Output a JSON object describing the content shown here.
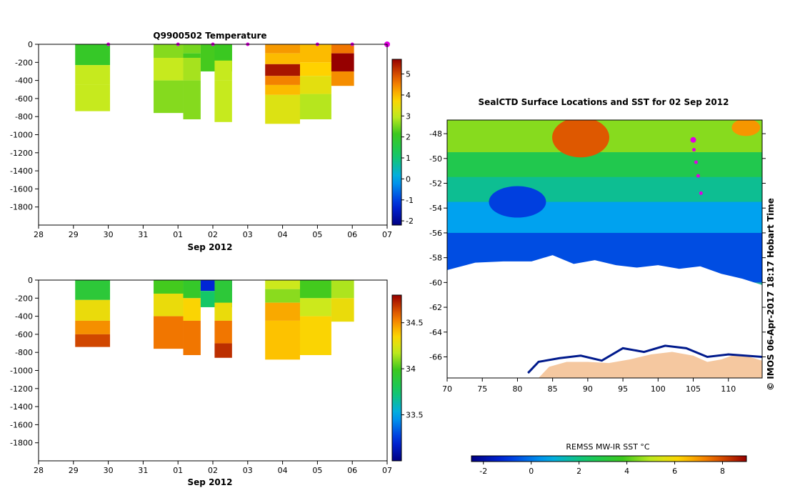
{
  "title_temp": "Q9900502  Temperature",
  "map_title": "SealCTD Surface Locations and SST for 02 Sep 2012",
  "date_label": "Sep 2012",
  "map_colorbar_label": "REMSS MW-IR SST °C",
  "side_credit": "© IMOS 06-Apr-2017 18:17 Hobart Time",
  "colors": {
    "profile_marker": "#e000e0",
    "land": "#f5c8a0",
    "ice_edge": "#001a8c"
  },
  "chart_data": [
    {
      "type": "heatmap",
      "title": "Q9900502  Temperature",
      "xlabel": "Sep 2012",
      "x_ticks": [
        "28",
        "29",
        "30",
        "31",
        "01",
        "02",
        "03",
        "04",
        "05",
        "06",
        "07"
      ],
      "y_ticks": [
        "0",
        "-200",
        "-400",
        "-600",
        "-800",
        "-1000",
        "-1200",
        "-1400",
        "-1600",
        "-1800"
      ],
      "ylim": [
        -2000,
        0
      ],
      "colorbar": {
        "ticks": [
          "5",
          "4",
          "3",
          "2",
          "1",
          "0",
          "-1",
          "-2"
        ],
        "range": [
          -2.2,
          5.7
        ]
      },
      "profiles": [
        {
          "t0": 1.05,
          "t1": 2.05,
          "bottom": -740,
          "layers": [
            [
              0,
              2.0
            ],
            [
              -230,
              3.0
            ],
            [
              -450,
              3.0
            ]
          ]
        },
        {
          "t0": 3.3,
          "t1": 4.15,
          "bottom": -760,
          "layers": [
            [
              0,
              2.6
            ],
            [
              -150,
              3.0
            ],
            [
              -400,
              2.6
            ]
          ]
        },
        {
          "t0": 4.15,
          "t1": 4.65,
          "bottom": -830,
          "layers": [
            [
              0,
              2.5
            ],
            [
              -100,
              2.2
            ],
            [
              -150,
              2.8
            ],
            [
              -400,
              2.6
            ]
          ]
        },
        {
          "t0": 4.65,
          "t1": 5.55,
          "bottom": -300,
          "layers": [
            [
              0,
              2.2
            ]
          ]
        },
        {
          "t0": 5.05,
          "t1": 5.55,
          "bottom": -860,
          "layers": [
            [
              0,
              2.1
            ],
            [
              -180,
              3.0
            ],
            [
              -400,
              3.0
            ]
          ]
        },
        {
          "t0": 6.5,
          "t1": 7.5,
          "bottom": -880,
          "layers": [
            [
              0,
              4.3
            ],
            [
              -100,
              4.0
            ],
            [
              -220,
              5.5
            ],
            [
              -350,
              4.5
            ],
            [
              -450,
              4.0
            ],
            [
              -560,
              3.3
            ]
          ]
        },
        {
          "t0": 7.5,
          "t1": 8.4,
          "bottom": -830,
          "layers": [
            [
              0,
              4.0
            ],
            [
              -200,
              3.8
            ],
            [
              -350,
              3.4
            ],
            [
              -550,
              2.9
            ]
          ]
        },
        {
          "t0": 8.4,
          "t1": 9.05,
          "bottom": -460,
          "layers": [
            [
              0,
              4.6
            ],
            [
              -100,
              5.7
            ],
            [
              -300,
              4.4
            ]
          ]
        }
      ],
      "markers_x": [
        2.0,
        4.0,
        5.0,
        6.0,
        8.0,
        9.0,
        10.0
      ]
    },
    {
      "type": "heatmap",
      "xlabel": "Sep 2012",
      "x_ticks": [
        "28",
        "29",
        "30",
        "31",
        "01",
        "02",
        "03",
        "04",
        "05",
        "06",
        "07"
      ],
      "y_ticks": [
        "0",
        "-200",
        "-400",
        "-600",
        "-800",
        "-1000",
        "-1200",
        "-1400",
        "-1600",
        "-1800"
      ],
      "ylim": [
        -2000,
        0
      ],
      "colorbar": {
        "ticks": [
          "34.5",
          "34",
          "33.5"
        ],
        "range": [
          33.0,
          34.8
        ]
      },
      "profiles": [
        {
          "t0": 1.05,
          "t1": 2.05,
          "bottom": -740,
          "layers": [
            [
              0,
              33.9
            ],
            [
              -220,
              34.3
            ],
            [
              -450,
              34.5
            ],
            [
              -600,
              34.65
            ]
          ]
        },
        {
          "t0": 3.3,
          "t1": 4.15,
          "bottom": -760,
          "layers": [
            [
              0,
              34.0
            ],
            [
              -150,
              34.3
            ],
            [
              -400,
              34.55
            ]
          ]
        },
        {
          "t0": 4.15,
          "t1": 4.65,
          "bottom": -830,
          "layers": [
            [
              0,
              33.95
            ],
            [
              -200,
              34.35
            ],
            [
              -450,
              34.55
            ]
          ]
        },
        {
          "t0": 4.65,
          "t1": 5.55,
          "bottom": -300,
          "layers": [
            [
              0,
              33.2
            ],
            [
              -120,
              33.75
            ]
          ]
        },
        {
          "t0": 5.05,
          "t1": 5.55,
          "bottom": -860,
          "layers": [
            [
              0,
              33.9
            ],
            [
              -250,
              34.3
            ],
            [
              -450,
              34.55
            ],
            [
              -700,
              34.7
            ]
          ]
        },
        {
          "t0": 6.5,
          "t1": 7.5,
          "bottom": -880,
          "layers": [
            [
              0,
              34.2
            ],
            [
              -100,
              34.1
            ],
            [
              -250,
              34.45
            ],
            [
              -450,
              34.4
            ]
          ]
        },
        {
          "t0": 7.5,
          "t1": 8.4,
          "bottom": -830,
          "layers": [
            [
              0,
              34.0
            ],
            [
              -200,
              34.2
            ],
            [
              -400,
              34.35
            ]
          ]
        },
        {
          "t0": 8.4,
          "t1": 9.05,
          "bottom": -460,
          "layers": [
            [
              0,
              34.15
            ],
            [
              -200,
              34.3
            ]
          ]
        }
      ]
    },
    {
      "type": "heatmap",
      "title": "SealCTD Surface Locations and SST for 02 Sep 2012",
      "x_ticks": [
        "70",
        "75",
        "80",
        "85",
        "90",
        "95",
        "100",
        "105",
        "110"
      ],
      "y_ticks": [
        "-48",
        "-50",
        "-52",
        "-54",
        "-56",
        "-58",
        "-60",
        "-62",
        "-64",
        "-66"
      ],
      "xlim": [
        70,
        114.8
      ],
      "ylim": [
        -67.7,
        -46.9
      ],
      "colorbar": {
        "label": "REMSS MW-IR SST °C",
        "ticks": [
          "-2",
          "0",
          "2",
          "4",
          "6",
          "8"
        ],
        "range": [
          -2.5,
          9.0
        ]
      },
      "track": [
        [
          105,
          -48.5
        ],
        [
          105.1,
          -49.3
        ],
        [
          105.4,
          -50.3
        ],
        [
          105.7,
          -51.4
        ],
        [
          106.1,
          -52.8
        ]
      ]
    }
  ]
}
